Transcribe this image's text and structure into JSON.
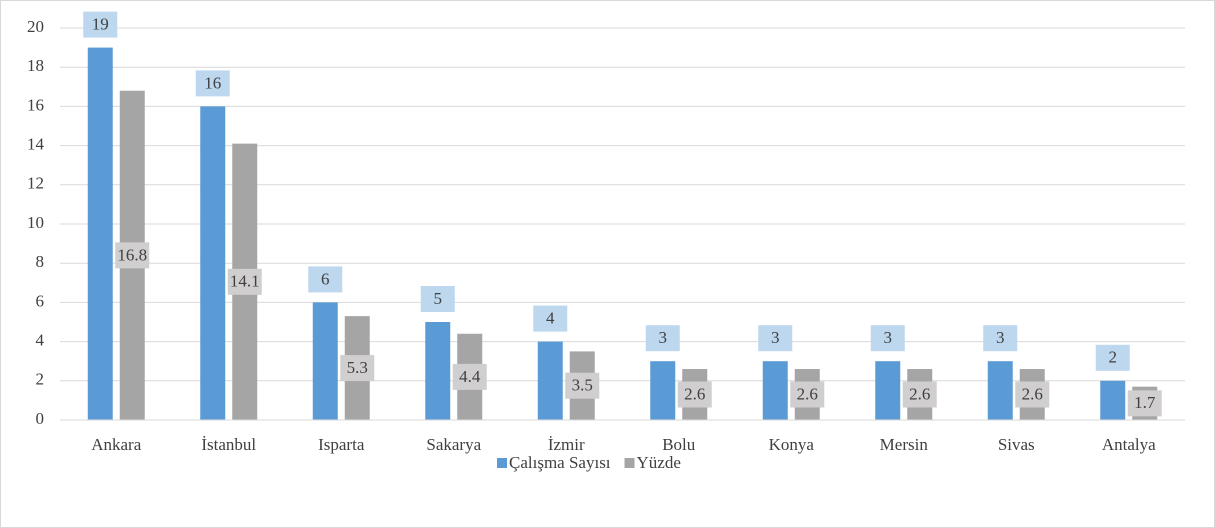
{
  "chart_data": {
    "type": "bar",
    "categories": [
      "Ankara",
      "İstanbul",
      "Isparta",
      "Sakarya",
      "İzmir",
      "Bolu",
      "Konya",
      "Mersin",
      "Sivas",
      "Antalya"
    ],
    "series": [
      {
        "name": "Çalışma Sayısı",
        "color": "#5b9bd5",
        "values": [
          19,
          16,
          6,
          5,
          4,
          3,
          3,
          3,
          3,
          2
        ]
      },
      {
        "name": "Yüzde",
        "color": "#a5a5a5",
        "values": [
          16.8,
          14.1,
          5.3,
          4.4,
          3.5,
          2.6,
          2.6,
          2.6,
          2.6,
          1.7
        ]
      }
    ],
    "ylim": [
      0,
      20
    ],
    "yticks": [
      0,
      2,
      4,
      6,
      8,
      10,
      12,
      14,
      16,
      18,
      20
    ],
    "grid": true,
    "legend": "bottom"
  }
}
